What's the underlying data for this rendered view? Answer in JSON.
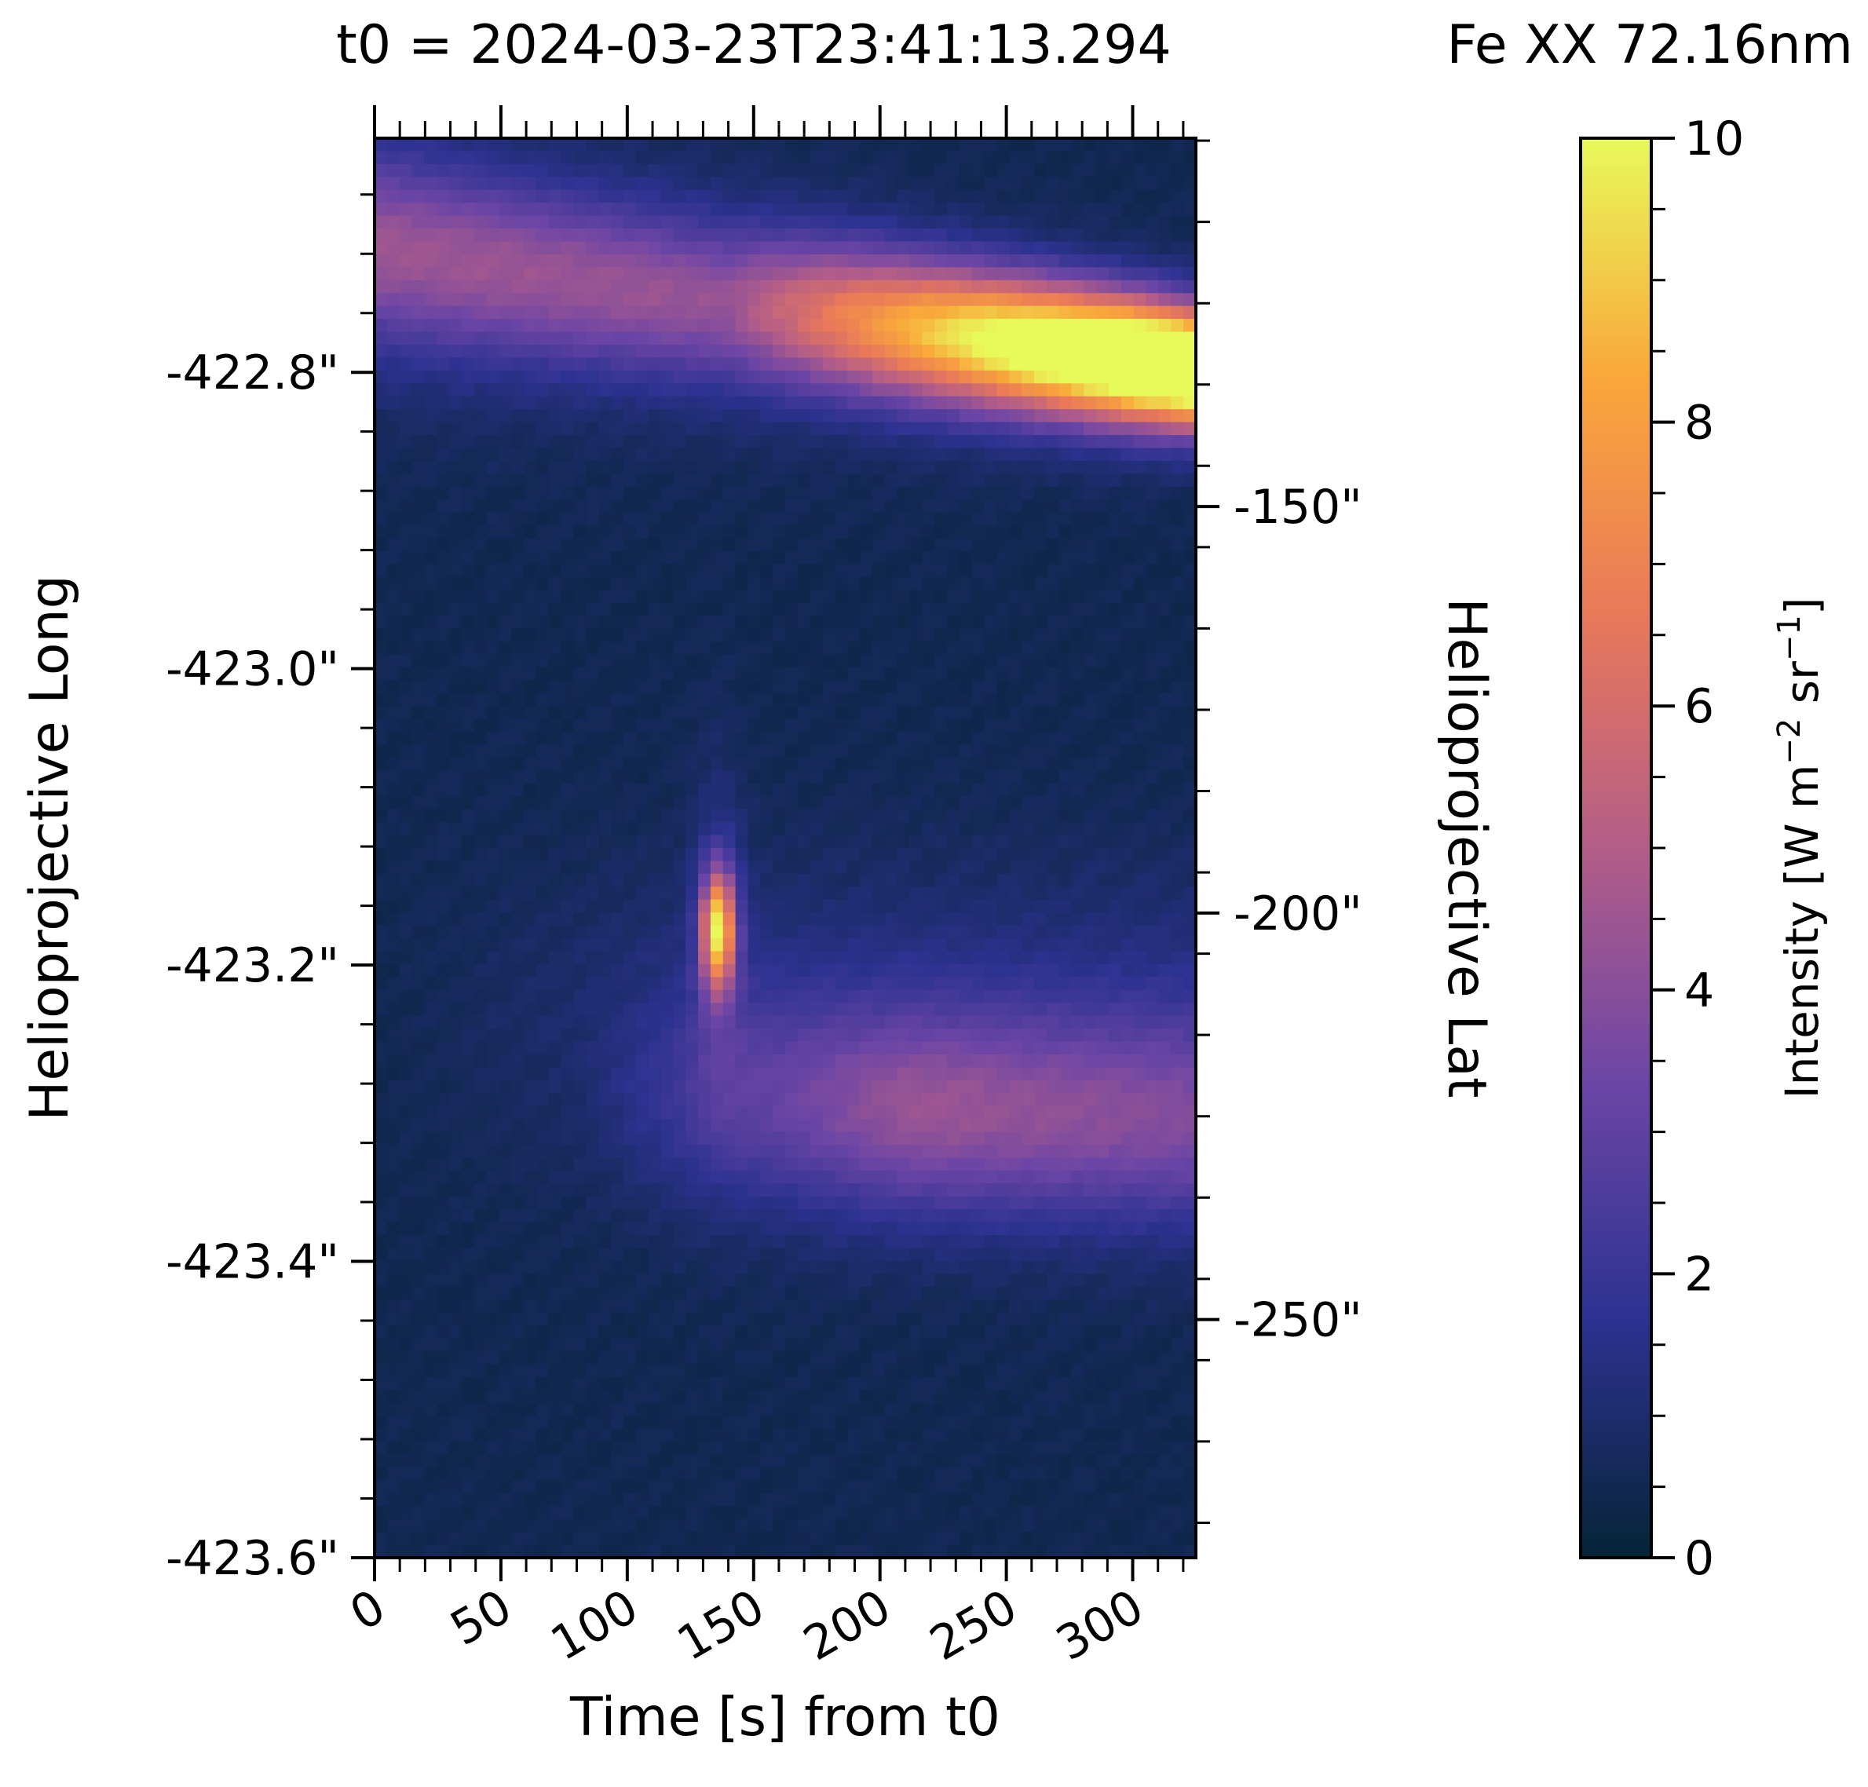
{
  "chart_data": {
    "type": "heatmap",
    "title_left": "t0 = 2024-03-23T23:41:13.294",
    "title_right": "Fe XX 72.16nm",
    "xlabel": "Time [s] from t0",
    "ylabel_left": "Helioprojective Long",
    "ylabel_right": "Helioprojective Lat",
    "colorbar_label": "Intensity [W m",
    "colorbar_label_exp1": "−2",
    "colorbar_label_mid": " sr",
    "colorbar_label_exp2": "−1",
    "colorbar_label_end": "]",
    "x_ticks": [
      "0",
      "50",
      "100",
      "150",
      "200",
      "250",
      "300"
    ],
    "x_tick_values": [
      0,
      50,
      100,
      150,
      200,
      250,
      300
    ],
    "xlim": [
      0,
      325
    ],
    "y_left_ticks": [
      "-422.8\"",
      "-423.0\"",
      "-423.2\"",
      "-423.4\"",
      "-423.6\""
    ],
    "y_left_tick_values": [
      -422.8,
      -423.0,
      -423.2,
      -423.4,
      -423.6
    ],
    "y_left_lim": [
      -423.6,
      -422.642
    ],
    "y_right_ticks": [
      "-150\"",
      "-200\"",
      "-250\""
    ],
    "y_right_tick_values": [
      -150,
      -200,
      -250
    ],
    "y_right_lim": [
      -279.3,
      -104.7
    ],
    "colorbar_ticks": [
      "0",
      "2",
      "4",
      "6",
      "8",
      "10"
    ],
    "colorbar_tick_values": [
      0,
      2,
      4,
      6,
      8,
      10
    ],
    "colorbar_range": [
      0,
      10
    ],
    "colormap": [
      "#062437",
      "#2c3290",
      "#6b45a6",
      "#b35d88",
      "#ea7959",
      "#f9a83a",
      "#e8f95a"
    ],
    "grid": false,
    "features": [
      {
        "name": "bright band",
        "t_start": 0,
        "t_end": 325,
        "lat_start": -118,
        "lat_end": -133,
        "peak_intensity": 10
      },
      {
        "name": "compact brightening",
        "t": 136,
        "lat": -202,
        "peak_intensity": 8
      },
      {
        "name": "diffuse emission",
        "t_start": 80,
        "t_end": 325,
        "lat": -222,
        "peak_intensity": 4
      }
    ]
  }
}
